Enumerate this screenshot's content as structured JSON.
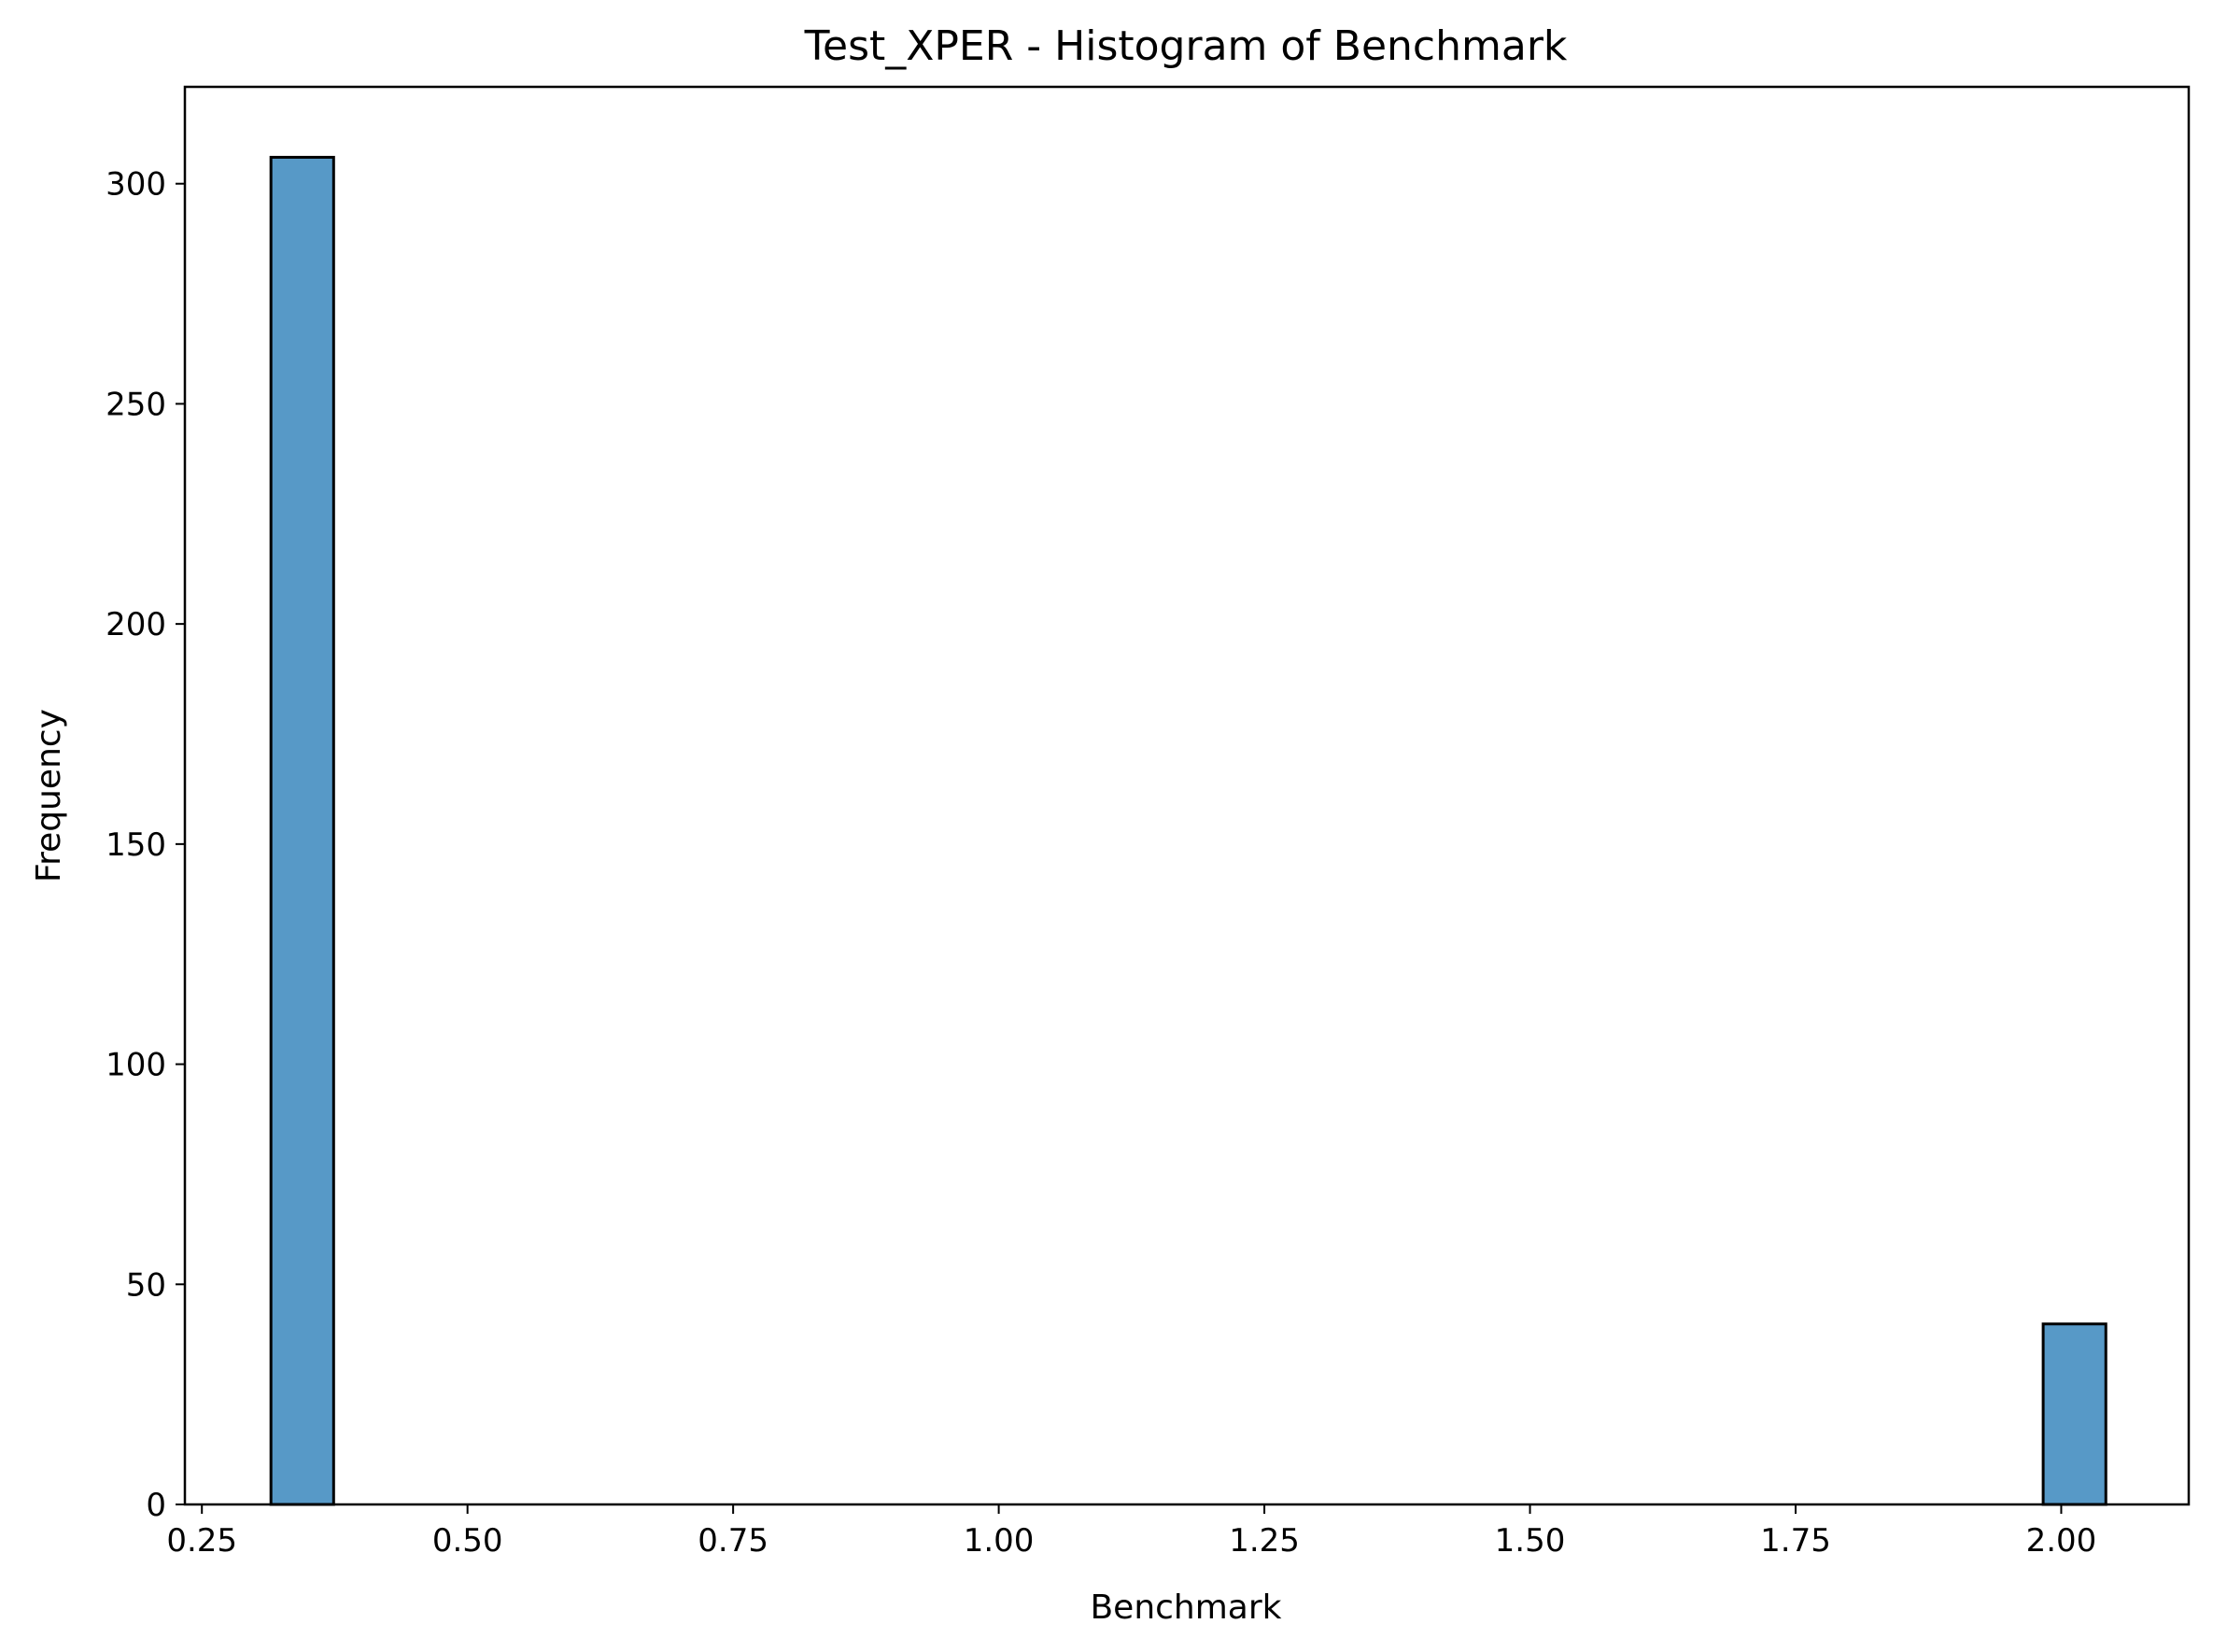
{
  "chart_data": {
    "type": "bar",
    "title": "Test_XPER - Histogram of Benchmark",
    "xlabel": "Benchmark",
    "ylabel": "Frequency",
    "xlim": [
      0.234,
      2.12
    ],
    "ylim": [
      0,
      322
    ],
    "xticks": [
      0.25,
      0.5,
      0.75,
      1.0,
      1.25,
      1.5,
      1.75,
      2.0
    ],
    "xtick_labels": [
      "0.25",
      "0.50",
      "0.75",
      "1.00",
      "1.25",
      "1.50",
      "1.75",
      "2.00"
    ],
    "yticks": [
      0,
      50,
      100,
      150,
      200,
      250,
      300
    ],
    "ytick_labels": [
      "0",
      "50",
      "100",
      "150",
      "200",
      "250",
      "300"
    ],
    "bins": [
      {
        "x0": 0.315,
        "x1": 0.374,
        "count": 306
      },
      {
        "x0": 1.983,
        "x1": 2.042,
        "count": 41
      }
    ],
    "bar_color": "#5799c7",
    "edge_color": "#000000",
    "grid": false,
    "legend": "none"
  }
}
